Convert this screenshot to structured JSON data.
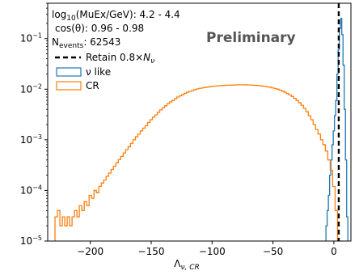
{
  "chart_data": {
    "type": "step-histogram",
    "xlabel_main": "Λ",
    "xlabel_sub": "ν, CR",
    "ylabel": "",
    "xlim": [
      -235,
      14
    ],
    "ylim": [
      1e-05,
      0.5
    ],
    "yscale": "log",
    "x_ticks": [
      -200,
      -150,
      -100,
      -50,
      0
    ],
    "x_tick_labels": [
      "−200",
      "−150",
      "−100",
      "−50",
      "0"
    ],
    "y_ticks": [
      0.1,
      0.01,
      0.001,
      0.0001,
      1e-05
    ],
    "y_tick_labels": [
      {
        "base": "10",
        "exp": "−1"
      },
      {
        "base": "10",
        "exp": "−2"
      },
      {
        "base": "10",
        "exp": "−3"
      },
      {
        "base": "10",
        "exp": "−4"
      },
      {
        "base": "10",
        "exp": "−5"
      }
    ],
    "annotations": {
      "line1_pre": "log",
      "line1_sub": "10",
      "line1_post": "(MuEx/GeV): 4.2 - 4.4",
      "line2": "cos(θ): 0.96 - 0.98",
      "line3_pre": "N",
      "line3_sub": "events",
      "line3_post": ": 62543",
      "watermark": "Preliminary"
    },
    "legend": {
      "placement": "top-left",
      "entries": [
        {
          "label_pre": "Retain 0.8×",
          "label_var": "N",
          "label_sub": "ν",
          "style": "dashed",
          "color": "#000000"
        },
        {
          "label": "ν like",
          "style": "box",
          "color": "#1f77b4"
        },
        {
          "label": "CR",
          "style": "box",
          "color": "#ff7f0e"
        }
      ]
    },
    "cut_line": {
      "x": 4
    },
    "series": [
      {
        "label_ref": "ν like",
        "color": "#1f77b4",
        "bins": [
          [
            -6.0,
            2e-05
          ],
          [
            -5.0,
            4e-05
          ],
          [
            -4.0,
            8e-05
          ],
          [
            -3.0,
            0.0002
          ],
          [
            -2.0,
            0.0004
          ],
          [
            -1.0,
            0.0008
          ],
          [
            0.0,
            0.0015
          ],
          [
            1.0,
            0.003
          ],
          [
            2.0,
            0.006
          ],
          [
            3.0,
            0.02
          ],
          [
            4.0,
            0.06
          ],
          [
            5.0,
            0.16
          ],
          [
            6.0,
            0.25
          ],
          [
            7.0,
            0.12
          ],
          [
            8.0,
            0.03
          ],
          [
            9.0,
            0.004
          ],
          [
            10.0,
            0.0004
          ],
          [
            11.0,
            3e-05
          ]
        ]
      },
      {
        "label_ref": "CR",
        "color": "#ff7f0e",
        "bins": [
          [
            -228,
            3e-05
          ],
          [
            -226,
            4e-05
          ],
          [
            -224,
            2e-05
          ],
          [
            -222,
            3e-05
          ],
          [
            -220,
            2e-05
          ],
          [
            -218,
            3e-05
          ],
          [
            -216,
            2e-05
          ],
          [
            -214,
            3e-05
          ],
          [
            -212,
            4e-05
          ],
          [
            -210,
            3e-05
          ],
          [
            -208,
            5e-05
          ],
          [
            -206,
            4e-05
          ],
          [
            -204,
            6e-05
          ],
          [
            -202,
            5e-05
          ],
          [
            -200,
            8e-05
          ],
          [
            -198,
            7e-05
          ],
          [
            -196,
            0.0001
          ],
          [
            -194,
            9e-05
          ],
          [
            -192,
            0.00012
          ],
          [
            -190,
            0.00014
          ],
          [
            -188,
            0.00016
          ],
          [
            -186,
            0.00019
          ],
          [
            -184,
            0.00022
          ],
          [
            -182,
            0.00026
          ],
          [
            -180,
            0.0003
          ],
          [
            -178,
            0.00035
          ],
          [
            -176,
            0.00041
          ],
          [
            -174,
            0.00047
          ],
          [
            -172,
            0.00055
          ],
          [
            -170,
            0.00064
          ],
          [
            -168,
            0.00073
          ],
          [
            -166,
            0.00085
          ],
          [
            -164,
            0.001
          ],
          [
            -162,
            0.00115
          ],
          [
            -160,
            0.0013
          ],
          [
            -158,
            0.0015
          ],
          [
            -156,
            0.0017
          ],
          [
            -154,
            0.0019
          ],
          [
            -152,
            0.0022
          ],
          [
            -150,
            0.0025
          ],
          [
            -148,
            0.0028
          ],
          [
            -146,
            0.0031
          ],
          [
            -144,
            0.0035
          ],
          [
            -142,
            0.0039
          ],
          [
            -140,
            0.0043
          ],
          [
            -138,
            0.0047
          ],
          [
            -136,
            0.0052
          ],
          [
            -134,
            0.0056
          ],
          [
            -132,
            0.006
          ],
          [
            -130,
            0.0065
          ],
          [
            -128,
            0.007
          ],
          [
            -126,
            0.0074
          ],
          [
            -124,
            0.0078
          ],
          [
            -122,
            0.0083
          ],
          [
            -120,
            0.0087
          ],
          [
            -118,
            0.0091
          ],
          [
            -116,
            0.0094
          ],
          [
            -114,
            0.0098
          ],
          [
            -112,
            0.0101
          ],
          [
            -110,
            0.0104
          ],
          [
            -108,
            0.0106
          ],
          [
            -106,
            0.0108
          ],
          [
            -104,
            0.011
          ],
          [
            -102,
            0.0112
          ],
          [
            -100,
            0.0114
          ],
          [
            -98,
            0.0115
          ],
          [
            -96,
            0.0116
          ],
          [
            -94,
            0.0117
          ],
          [
            -92,
            0.0118
          ],
          [
            -90,
            0.0119
          ],
          [
            -88,
            0.012
          ],
          [
            -86,
            0.012
          ],
          [
            -84,
            0.0121
          ],
          [
            -82,
            0.0121
          ],
          [
            -80,
            0.0122
          ],
          [
            -78,
            0.0122
          ],
          [
            -76,
            0.0122
          ],
          [
            -74,
            0.0122
          ],
          [
            -72,
            0.0122
          ],
          [
            -70,
            0.0121
          ],
          [
            -68,
            0.0121
          ],
          [
            -66,
            0.012
          ],
          [
            -64,
            0.0119
          ],
          [
            -62,
            0.0118
          ],
          [
            -60,
            0.0117
          ],
          [
            -58,
            0.0115
          ],
          [
            -56,
            0.0114
          ],
          [
            -54,
            0.0111
          ],
          [
            -52,
            0.0109
          ],
          [
            -50,
            0.0106
          ],
          [
            -48,
            0.0103
          ],
          [
            -46,
            0.01
          ],
          [
            -44,
            0.0096
          ],
          [
            -42,
            0.0092
          ],
          [
            -40,
            0.0087
          ],
          [
            -38,
            0.0082
          ],
          [
            -36,
            0.0077
          ],
          [
            -34,
            0.0072
          ],
          [
            -32,
            0.0066
          ],
          [
            -30,
            0.006
          ],
          [
            -28,
            0.0054
          ],
          [
            -26,
            0.0048
          ],
          [
            -24,
            0.0042
          ],
          [
            -22,
            0.0036
          ],
          [
            -20,
            0.003
          ],
          [
            -18,
            0.0025
          ],
          [
            -16,
            0.002
          ],
          [
            -14,
            0.0016
          ],
          [
            -12,
            0.0013
          ],
          [
            -10,
            0.001
          ],
          [
            -8,
            0.0008
          ],
          [
            -6,
            0.0006
          ],
          [
            -4,
            0.0004
          ],
          [
            -2,
            0.00025
          ],
          [
            0,
            0.00012
          ],
          [
            2,
            4e-05
          ]
        ]
      }
    ]
  }
}
